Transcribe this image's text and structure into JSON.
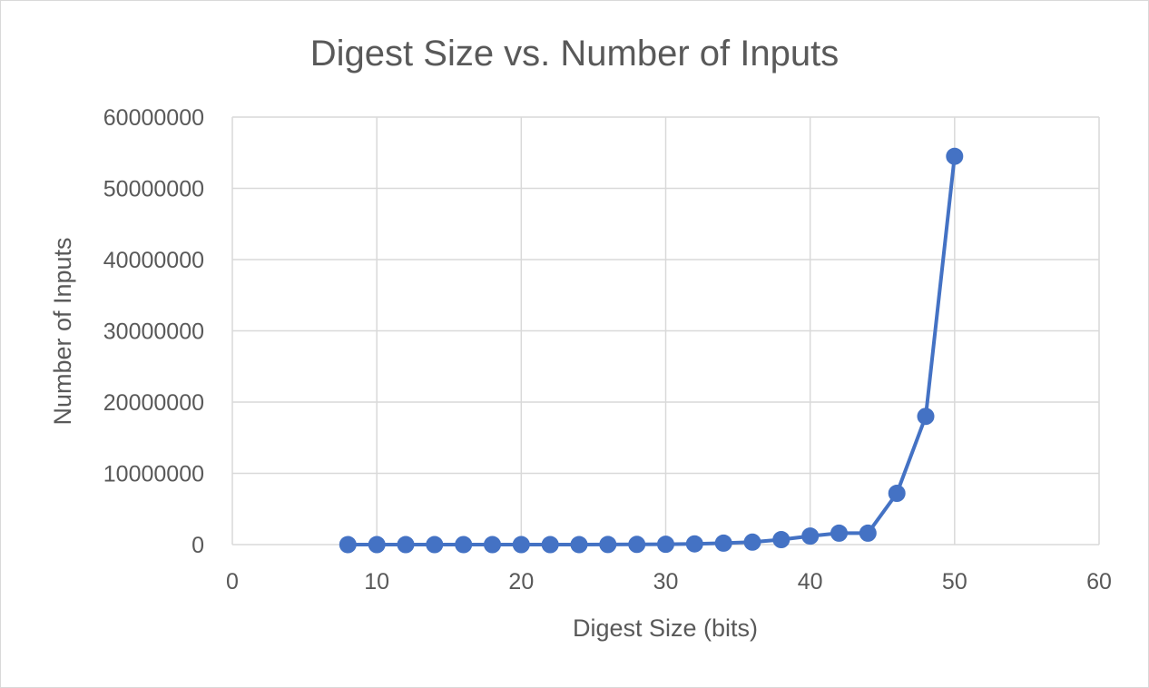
{
  "chart_data": {
    "type": "scatter",
    "title": "Digest Size vs. Number of Inputs",
    "xlabel": "Digest Size (bits)",
    "ylabel": "Number of Inputs",
    "xlim": [
      0,
      60
    ],
    "ylim": [
      0,
      60000000
    ],
    "x_ticks": [
      "0",
      "10",
      "20",
      "30",
      "40",
      "50",
      "60"
    ],
    "y_ticks": [
      "0",
      "10000000",
      "20000000",
      "30000000",
      "40000000",
      "50000000",
      "60000000"
    ],
    "grid": true,
    "legend": "none",
    "marker": "circle",
    "lines": "straight",
    "series": [
      {
        "color": "#4472C4",
        "points": [
          {
            "x": 8,
            "y": 20
          },
          {
            "x": 10,
            "y": 50
          },
          {
            "x": 12,
            "y": 100
          },
          {
            "x": 14,
            "y": 200
          },
          {
            "x": 16,
            "y": 400
          },
          {
            "x": 18,
            "y": 800
          },
          {
            "x": 20,
            "y": 1500
          },
          {
            "x": 22,
            "y": 3000
          },
          {
            "x": 24,
            "y": 6000
          },
          {
            "x": 26,
            "y": 12000
          },
          {
            "x": 28,
            "y": 25000
          },
          {
            "x": 30,
            "y": 50000
          },
          {
            "x": 32,
            "y": 100000
          },
          {
            "x": 34,
            "y": 200000
          },
          {
            "x": 36,
            "y": 350000
          },
          {
            "x": 38,
            "y": 700000
          },
          {
            "x": 40,
            "y": 1200000
          },
          {
            "x": 42,
            "y": 1600000
          },
          {
            "x": 44,
            "y": 1600000
          },
          {
            "x": 46,
            "y": 7200000
          },
          {
            "x": 48,
            "y": 18000000
          },
          {
            "x": 50,
            "y": 54500000
          }
        ]
      }
    ]
  }
}
